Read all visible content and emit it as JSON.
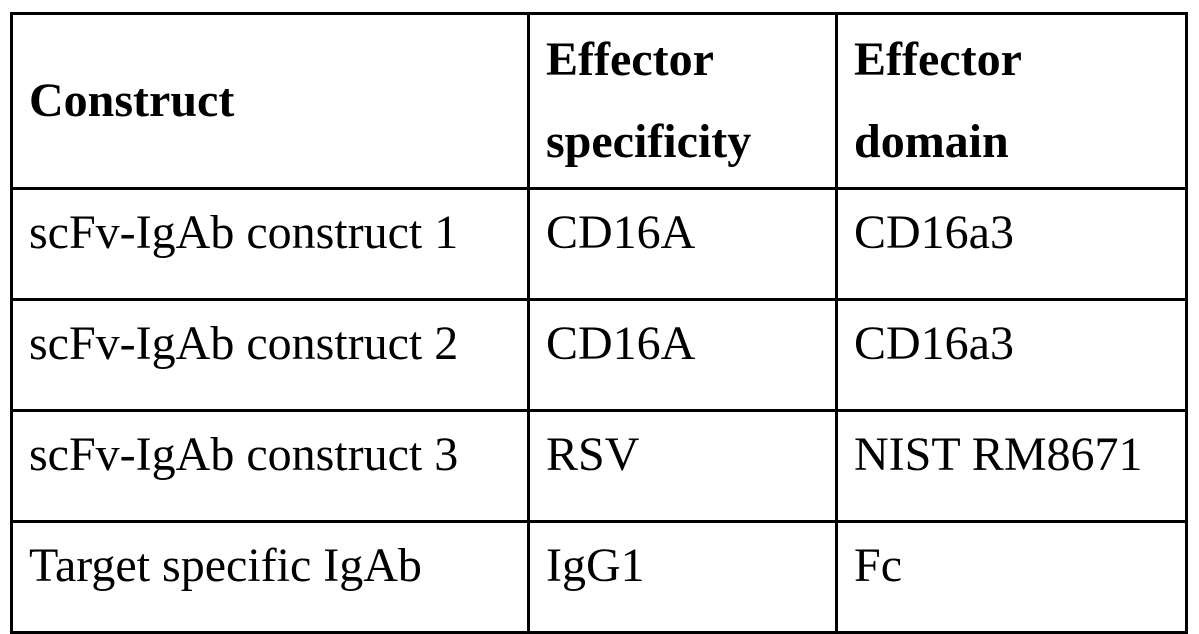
{
  "colors": {
    "background": "#ffffff",
    "border": "#000000",
    "text": "#000000"
  },
  "table": {
    "columns": [
      {
        "label": "Construct"
      },
      {
        "label": "Effector\nspecificity"
      },
      {
        "label": "Effector\ndomain"
      }
    ],
    "rows": [
      {
        "construct": "scFv-IgAb construct 1",
        "effector_specificity": "CD16A",
        "effector_domain": "CD16a3"
      },
      {
        "construct": "scFv-IgAb construct 2",
        "effector_specificity": "CD16A",
        "effector_domain": "CD16a3"
      },
      {
        "construct": "scFv-IgAb construct 3",
        "effector_specificity": "RSV",
        "effector_domain": "NIST RM8671"
      },
      {
        "construct": "Target specific IgAb",
        "effector_specificity": "IgG1",
        "effector_domain": "Fc"
      }
    ]
  }
}
